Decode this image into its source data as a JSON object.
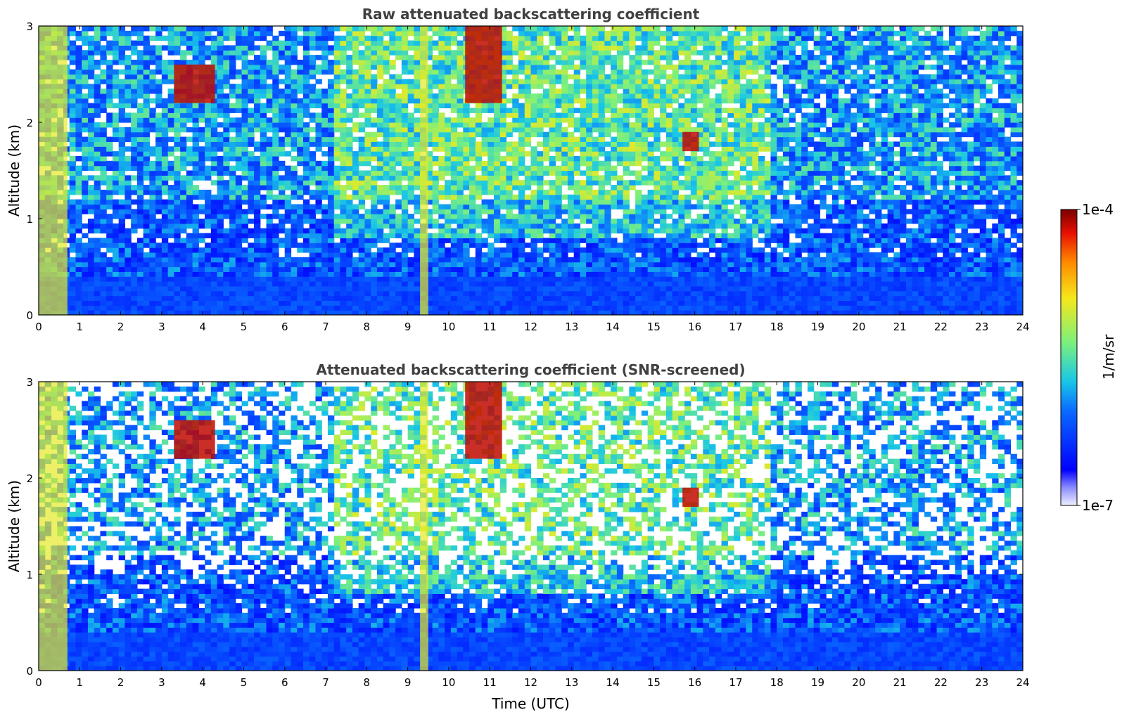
{
  "chart_data": [
    {
      "type": "heatmap",
      "title": "Raw attenuated backscattering coefficient",
      "xlabel": "",
      "ylabel": "Altitude (km)",
      "xlim": [
        0,
        24
      ],
      "ylim": [
        0,
        3
      ],
      "xticks": [
        "0",
        "1",
        "2",
        "3",
        "4",
        "5",
        "6",
        "7",
        "8",
        "9",
        "10",
        "11",
        "12",
        "13",
        "14",
        "15",
        "16",
        "17",
        "18",
        "19",
        "20",
        "21",
        "22",
        "23",
        "24"
      ],
      "yticks": [
        "0",
        "1",
        "2",
        "3"
      ],
      "colorscale": "jet",
      "log_scale": true,
      "value_range": [
        1e-07,
        0.0001
      ],
      "features": [
        {
          "time": [
            0.0,
            0.7
          ],
          "altitude": [
            0.0,
            3.0
          ],
          "level": "high"
        },
        {
          "time": [
            9.3,
            9.5
          ],
          "altitude": [
            0.0,
            3.0
          ],
          "level": "high"
        },
        {
          "time": [
            3.3,
            4.3
          ],
          "altitude": [
            2.2,
            2.6
          ],
          "level": "max"
        },
        {
          "time": [
            10.4,
            11.3
          ],
          "altitude": [
            2.2,
            3.0
          ],
          "level": "max"
        },
        {
          "time": [
            15.7,
            16.1
          ],
          "altitude": [
            1.7,
            1.9
          ],
          "level": "max"
        }
      ]
    },
    {
      "type": "heatmap",
      "title": "Attenuated backscattering coefficient (SNR-screened)",
      "xlabel": "Time (UTC)",
      "ylabel": "Altitude (km)",
      "xlim": [
        0,
        24
      ],
      "ylim": [
        0,
        3
      ],
      "xticks": [
        "0",
        "1",
        "2",
        "3",
        "4",
        "5",
        "6",
        "7",
        "8",
        "9",
        "10",
        "11",
        "12",
        "13",
        "14",
        "15",
        "16",
        "17",
        "18",
        "19",
        "20",
        "21",
        "22",
        "23",
        "24"
      ],
      "yticks": [
        "0",
        "1",
        "2",
        "3"
      ],
      "colorscale": "jet",
      "log_scale": true,
      "value_range": [
        1e-07,
        0.0001
      ],
      "features": [
        {
          "time": [
            0.0,
            0.7
          ],
          "altitude": [
            0.0,
            3.0
          ],
          "level": "high"
        },
        {
          "time": [
            9.3,
            9.5
          ],
          "altitude": [
            0.0,
            3.0
          ],
          "level": "high"
        },
        {
          "time": [
            3.3,
            4.3
          ],
          "altitude": [
            2.2,
            2.6
          ],
          "level": "max"
        },
        {
          "time": [
            10.4,
            11.3
          ],
          "altitude": [
            2.2,
            3.0
          ],
          "level": "max"
        },
        {
          "time": [
            15.7,
            16.1
          ],
          "altitude": [
            1.7,
            1.9
          ],
          "level": "max"
        }
      ]
    }
  ],
  "colorbar": {
    "label": "1/m/sr",
    "max_label": "1e-4",
    "min_label": "1e-7"
  }
}
